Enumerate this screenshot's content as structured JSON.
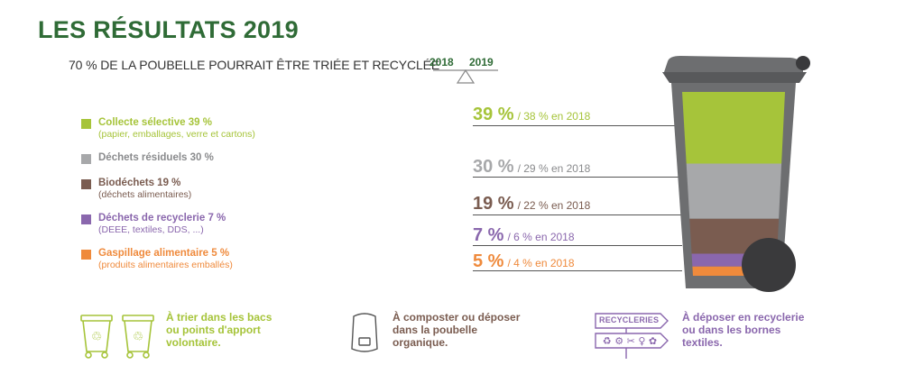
{
  "header": {
    "title": "LES RÉSULTATS 2019",
    "subtitle": "70 % DE LA POUBELLE POURRAIT ÊTRE TRIÉE ET RECYCLÉE",
    "year_left": "2018",
    "year_right": "2019"
  },
  "legend": [
    {
      "label": "Collecte sélective 39 %",
      "sub": "(papier, emballages, verre et cartons)",
      "color": "#a6c43a"
    },
    {
      "label": "Déchets résiduels 30 %",
      "sub": "",
      "color": "#a7a8aa"
    },
    {
      "label": "Biodéchets 19 %",
      "sub": "(déchets alimentaires)",
      "color": "#7a5c50"
    },
    {
      "label": "Déchets de recyclerie 7 %",
      "sub": "(DEEE, textiles, DDS, ...)",
      "color": "#8a67ad"
    },
    {
      "label": "Gaspillage alimentaire 5 %",
      "sub": "(produits alimentaires emballés)",
      "color": "#ef8a3c"
    }
  ],
  "chart_data": {
    "type": "bar",
    "categories": [
      "Collecte sélective",
      "Déchets résiduels",
      "Biodéchets",
      "Déchets de recyclerie",
      "Gaspillage alimentaire"
    ],
    "series": [
      {
        "name": "2019",
        "values": [
          39,
          30,
          19,
          7,
          5
        ]
      },
      {
        "name": "2018",
        "values": [
          38,
          29,
          22,
          6,
          4
        ]
      }
    ],
    "title": "LES RÉSULTATS 2019",
    "ylim": [
      0,
      100
    ]
  },
  "results": [
    {
      "big": "39 %",
      "small": "/ 38 % en 2018",
      "color": "#a6c43a"
    },
    {
      "big": "30 %",
      "small": "/ 29 % en 2018",
      "color": "#a7a8aa"
    },
    {
      "big": "19 %",
      "small": "/ 22 % en 2018",
      "color": "#7a5c50"
    },
    {
      "big": "7 %",
      "small": "/ 6 % en 2018",
      "color": "#8a67ad"
    },
    {
      "big": "5 %",
      "small": "/ 4 % en 2018",
      "color": "#ef8a3c"
    }
  ],
  "bottom": {
    "green": {
      "line1": "À trier dans les bacs",
      "line2": "ou points d'apport",
      "line3": "volontaire.",
      "color": "#a6c43a"
    },
    "brown": {
      "line1": "À composter ou déposer",
      "line2": "dans la poubelle",
      "line3": "organique.",
      "color": "#7a5c50"
    },
    "purple": {
      "line1": "À déposer en recyclerie",
      "line2": "ou dans les bornes",
      "line3": "textiles.",
      "color": "#8a67ad",
      "sign": "RECYCLERIES"
    }
  },
  "colors": {
    "title": "#2f6b36",
    "bin_body": "#6d6e70",
    "bin_dark": "#3a3a3c"
  }
}
